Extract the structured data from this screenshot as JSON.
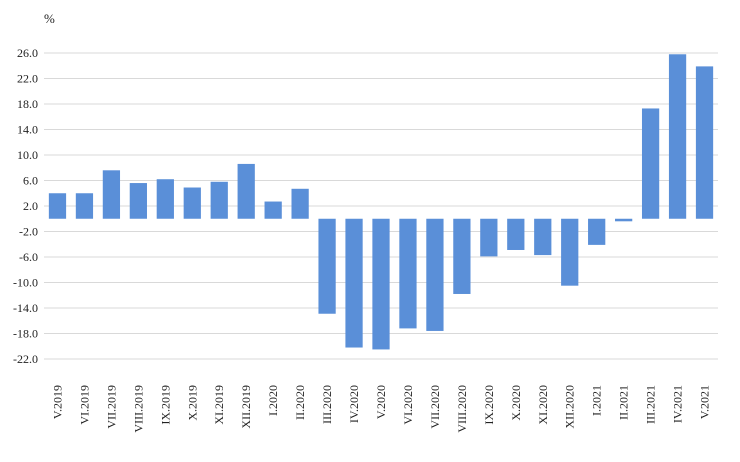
{
  "chart_data": {
    "type": "bar",
    "title": "",
    "xlabel": "",
    "ylabel": "%",
    "ylim": [
      -22.0,
      26.0
    ],
    "yticks": [
      26.0,
      22.0,
      18.0,
      14.0,
      10.0,
      6.0,
      2.0,
      -2.0,
      -6.0,
      -10.0,
      -14.0,
      -18.0,
      -22.0
    ],
    "ytick_labels": [
      "26.0",
      "22.0",
      "18.0",
      "14.0",
      "10.0",
      "6.0",
      "2.0",
      "-2.0",
      "-6.0",
      "-10.0",
      "-14.0",
      "-18.0",
      "-22.0"
    ],
    "grid": true,
    "bar_color": "#5a8fd8",
    "grid_color": "#d9d9d9",
    "categories": [
      "V.2019",
      "VI.2019",
      "VII.2019",
      "VIII.2019",
      "IX.2019",
      "X.2019",
      "XI.2019",
      "XII.2019",
      "I.2020",
      "II.2020",
      "III.2020",
      "IV.2020",
      "V.2020",
      "VI.2020",
      "VII.2020",
      "VIII.2020",
      "IX.2020",
      "X.2020",
      "XI.2020",
      "XII.2020",
      "I.2021",
      "II.2021",
      "III.2021",
      "IV.2021",
      "V.2021"
    ],
    "values": [
      4.0,
      4.0,
      7.6,
      5.6,
      6.2,
      4.9,
      5.8,
      8.6,
      2.7,
      4.7,
      -14.9,
      -20.2,
      -20.5,
      -17.2,
      -17.6,
      -11.8,
      -5.9,
      -4.9,
      -5.7,
      -10.5,
      -4.1,
      -0.4,
      17.3,
      25.8,
      23.9
    ]
  }
}
